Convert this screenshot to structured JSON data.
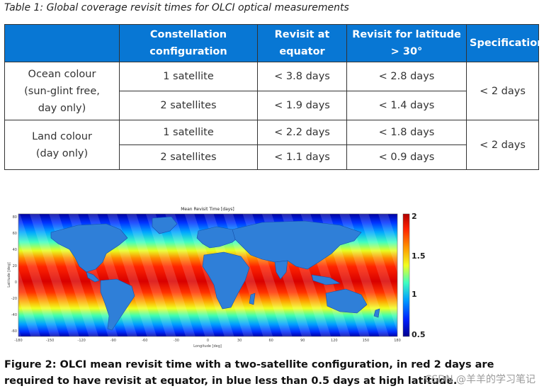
{
  "table_caption": "Table 1: Global coverage revisit times for OLCI optical measurements",
  "table": {
    "headers": {
      "col1": "",
      "col2": "Constellation configuration",
      "col3": "Revisit at equator",
      "col4": "Revisit for latitude > 30°",
      "col5": "Specification"
    },
    "groups": [
      {
        "label": "Ocean colour (sun-glint free, day only)",
        "specification": "< 2 days",
        "rows": [
          {
            "config": "1 satellite",
            "equator": "< 3.8 days",
            "latitude": "< 2.8 days"
          },
          {
            "config": "2 satellites",
            "equator": "< 1.9 days",
            "latitude": "< 1.4 days"
          }
        ]
      },
      {
        "label": "Land colour (day only)",
        "specification": "< 2 days",
        "rows": [
          {
            "config": "1 satellite",
            "equator": "< 2.2 days",
            "latitude": "< 1.8 days"
          },
          {
            "config": "2 satellites",
            "equator": "< 1.1 days",
            "latitude": "< 0.9 days"
          }
        ]
      }
    ]
  },
  "figure": {
    "title": "Mean Revisit Time [days]",
    "xlabel": "Longitude [deg]",
    "ylabel": "Latitude [deg]",
    "x_ticks": [
      "-180",
      "-150",
      "-120",
      "-90",
      "-60",
      "-30",
      "0",
      "30",
      "60",
      "90",
      "120",
      "150",
      "180"
    ],
    "y_ticks": [
      "80",
      "60",
      "40",
      "20",
      "0",
      "-20",
      "-40",
      "-60"
    ],
    "colorbar_ticks": [
      "2",
      "1.5",
      "1",
      "0.5"
    ]
  },
  "figure_caption": "Figure 2: OLCI mean revisit time with a two-satellite configuration, in red 2 days are required to have revisit at equator, in blue less than 0.5 days at high latitude.",
  "watermark": "CSDN @羊羊的学习笔记",
  "colors": {
    "header_bg": "#0877d4",
    "header_text": "#ffffff",
    "border": "#333333"
  }
}
